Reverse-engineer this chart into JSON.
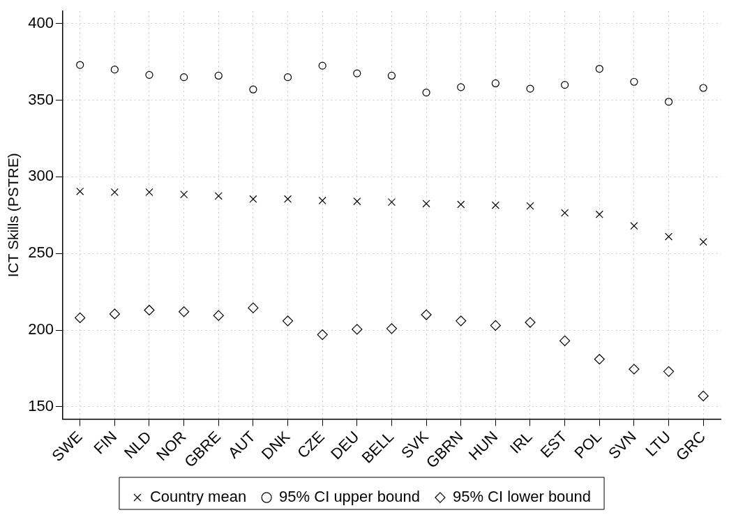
{
  "chart_data": {
    "type": "scatter",
    "ylabel": "ICT Skills (PSTRE)",
    "categories": [
      "SWE",
      "FIN",
      "NLD",
      "NOR",
      "GBRE",
      "AUT",
      "DNK",
      "CZE",
      "DEU",
      "BELL",
      "SVK",
      "GBRN",
      "HUN",
      "IRL",
      "EST",
      "POL",
      "SVN",
      "LTU",
      "GRC"
    ],
    "series": [
      {
        "name": "Country mean",
        "color": "#000000",
        "marker": "cross",
        "values": [
          290.5,
          290,
          290,
          288.5,
          287.5,
          285.5,
          285.5,
          284.5,
          284,
          283.5,
          282.5,
          282,
          281.5,
          281,
          276.5,
          275.5,
          268,
          261,
          257.5
        ]
      },
      {
        "name": "95% CI upper bound",
        "color": "#000000",
        "marker": "circle",
        "values": [
          373,
          370,
          366.5,
          365,
          366,
          357,
          365,
          372.5,
          367.5,
          366,
          355,
          358.5,
          361,
          357.5,
          360,
          370.5,
          362,
          349,
          358
        ]
      },
      {
        "name": "95% CI lower bound",
        "color": "#000000",
        "marker": "diamond",
        "values": [
          208,
          210.5,
          213,
          212,
          209.5,
          214.5,
          206,
          197,
          200.5,
          201,
          210,
          206,
          203,
          205,
          193,
          181,
          174.5,
          173,
          157
        ]
      }
    ],
    "ylim": [
      142,
      408
    ],
    "yticks": [
      150,
      200,
      250,
      300,
      350,
      400
    ],
    "grid": true,
    "legend": "bottom"
  }
}
